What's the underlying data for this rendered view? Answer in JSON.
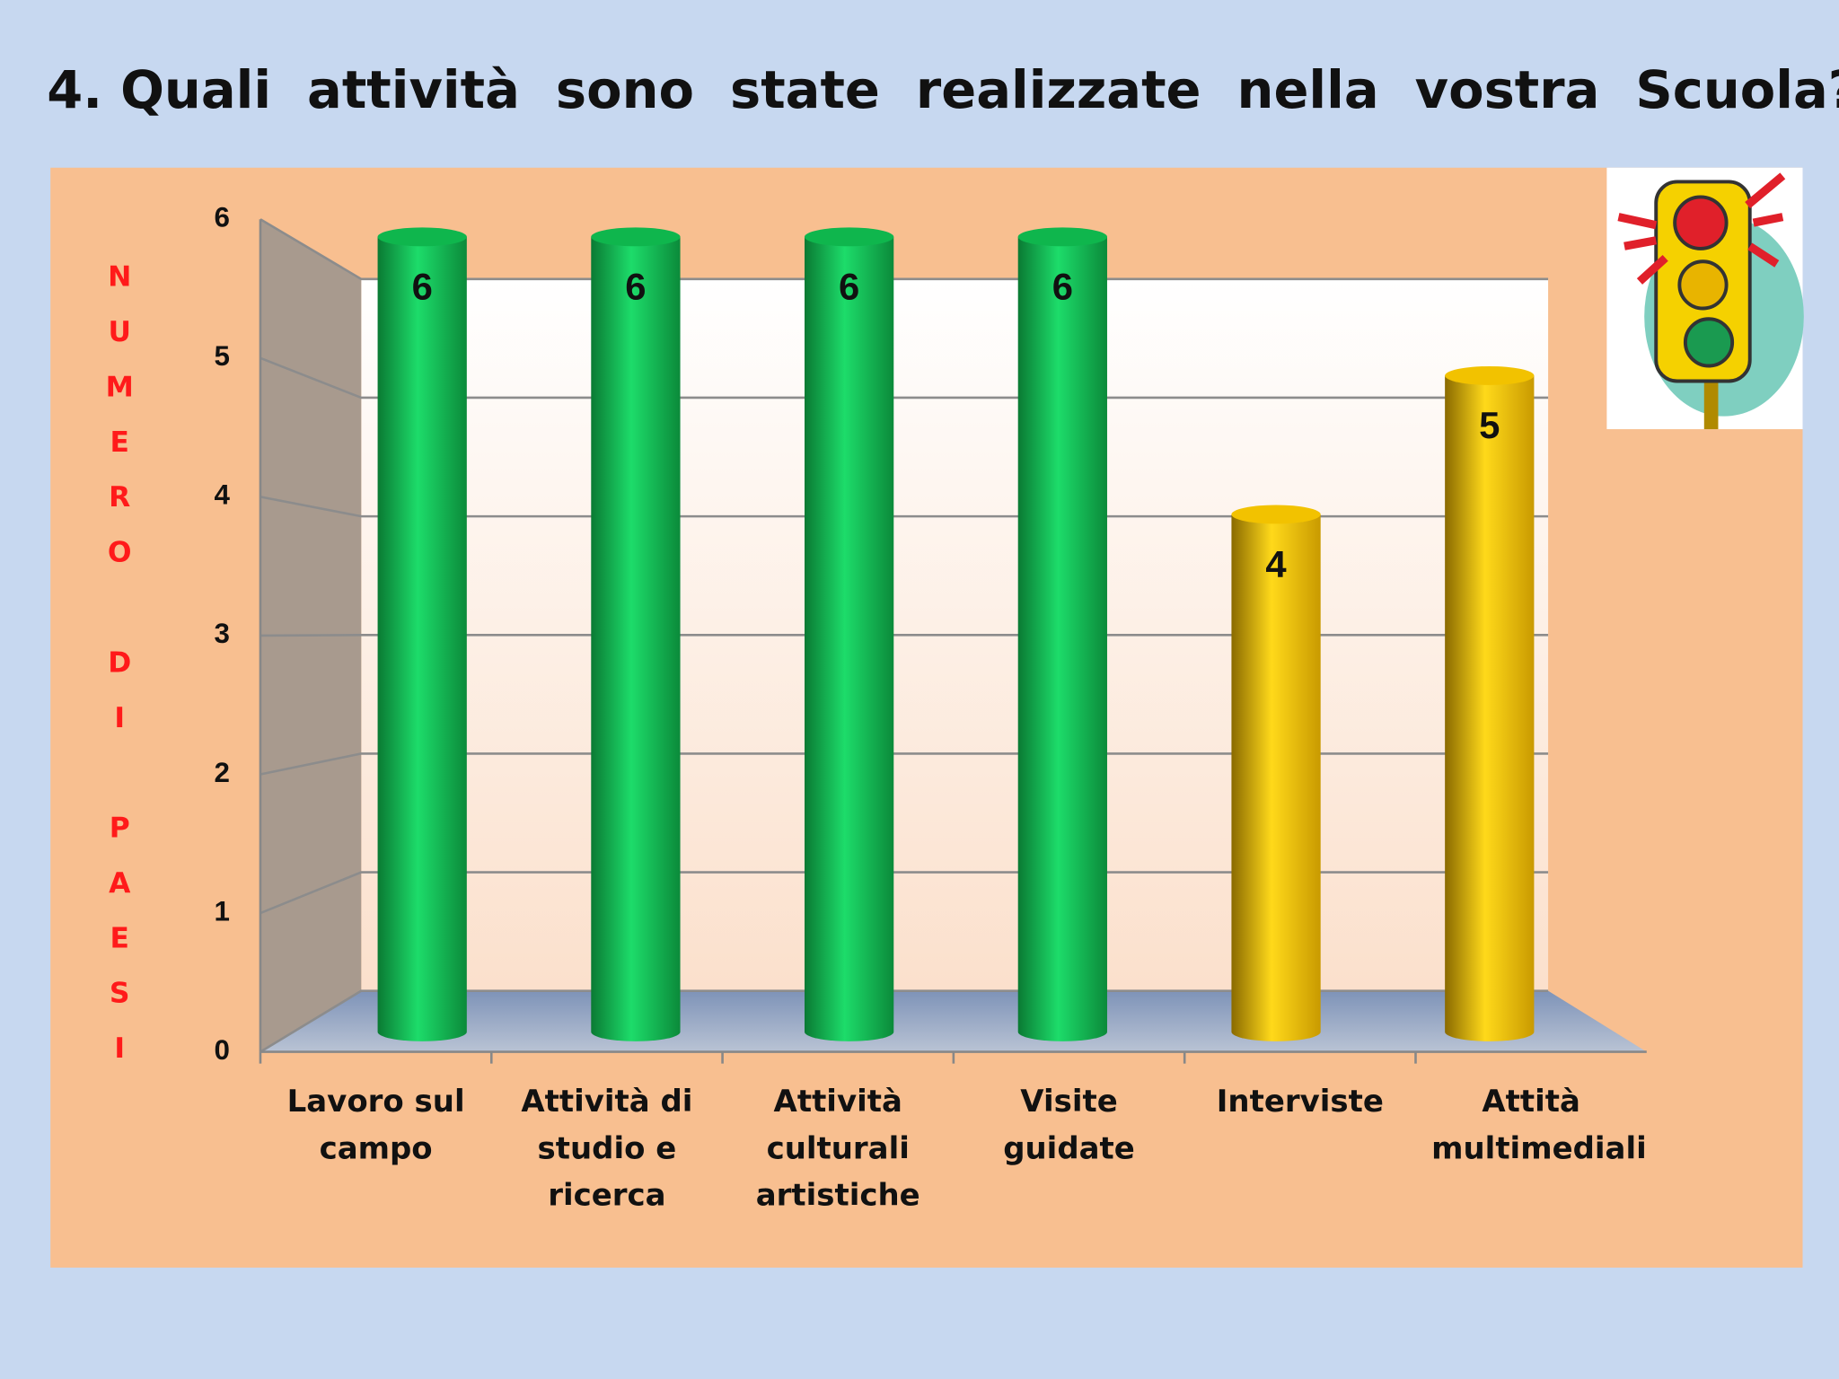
{
  "chart_data": {
    "type": "bar",
    "title": "4. Quali  attività  sono  state  realizzate  nella  vostra  Scuola?",
    "y_label": "NUMERO DI PAESI",
    "categories": [
      "Lavoro sul campo",
      "Attività di studio e ricerca",
      "Attività culturali artistiche",
      "Visite guidate",
      "Interviste",
      "Attità multimediali"
    ],
    "values": [
      6,
      6,
      6,
      6,
      4,
      5
    ],
    "colors": [
      "#0fb64d",
      "#0fb64d",
      "#0fb64d",
      "#0fb64d",
      "#f2c200",
      "#f2c200"
    ],
    "ylim": [
      0,
      6
    ],
    "yticks": [
      0,
      1,
      2,
      3,
      4,
      5,
      6
    ],
    "grid": true
  }
}
